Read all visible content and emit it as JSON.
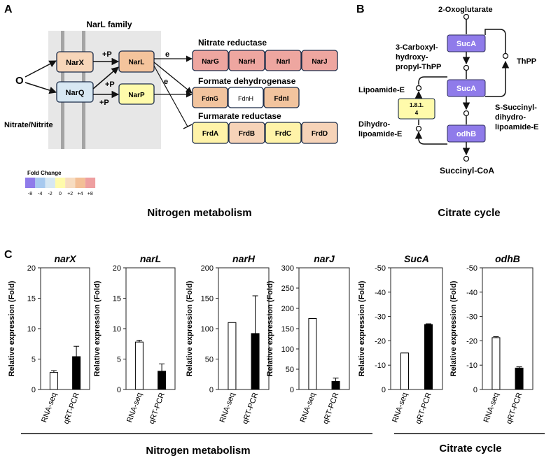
{
  "panels": {
    "A": "A",
    "B": "B",
    "C": "C"
  },
  "panel_a": {
    "family_label": "NarL family",
    "signal": "O",
    "input_label": "Nitrate/Nitrite",
    "phospho": "+P",
    "electron": "e",
    "nodes": {
      "narx": "NarX",
      "narq": "NarQ",
      "narl": "NarL",
      "narp": "NarP",
      "narg": "NarG",
      "narh": "NarH",
      "nari": "NarI",
      "narj": "NarJ",
      "fdng": "FdnG",
      "fdnh": "FdnH",
      "fdni": "FdnI",
      "frda": "FrdA",
      "frdb": "FrdB",
      "frdc": "FrdC",
      "frdd": "FrdD"
    },
    "node_colors": {
      "narx": "#f7d6b9",
      "narq": "#d8e8f3",
      "narl": "#f4c49c",
      "narp": "#fffbab",
      "narg": "#eea6a0",
      "narh": "#eea6a0",
      "nari": "#eea6a0",
      "narj": "#eea6a0",
      "fdng": "#f2c49e",
      "fdnh": "#ffffff",
      "fdni": "#f2c49e",
      "frda": "#fff3a8",
      "frdb": "#f6d3b8",
      "frdc": "#fff3a8",
      "frdd": "#f6d3b8"
    },
    "group_titles": {
      "nitrate": "Nitrate reductase",
      "formate": "Formate dehydrogenase",
      "fumarate": "Furmarate reductase"
    },
    "legend": {
      "title": "Fold Change",
      "ticks": [
        "-8",
        "-4",
        "-2",
        "0",
        "+2",
        "+4",
        "+8"
      ],
      "colors": [
        "#8f7bea",
        "#a7c9ef",
        "#d6e7f3",
        "#fffbab",
        "#f7dcc0",
        "#f3bf96",
        "#ee9fa0"
      ]
    },
    "caption": "Nitrogen metabolism"
  },
  "panel_b": {
    "top": "2-Oxoglutarate",
    "bottom": "Succinyl-CoA",
    "enzymes": {
      "suca1": "SucA",
      "suca2": "SucA",
      "odhb": "odhB",
      "ec": "1.8.1.\n4"
    },
    "ec_lines": [
      "1.8.1.",
      "4"
    ],
    "enzyme_color": "#8f7bea",
    "ec_color": "#fffbab",
    "labels": {
      "carboxy": [
        "3-Carboxyl-",
        "hydroxy-",
        "propyl-ThPP"
      ],
      "thpp": "ThPP",
      "lipoamide": "Lipoamide-E",
      "succinyl": [
        "S-Succinyl-",
        "dihydro-",
        "lipoamide-E"
      ],
      "dihydro": [
        "Dihydro-",
        "lipoamide-E"
      ]
    },
    "caption": "Citrate cycle"
  },
  "panel_c": {
    "ylabel": "Relative expression (Fold)",
    "group_captions": {
      "nitrogen": "Nitrogen metabolism",
      "citrate": "Citrate cycle"
    }
  },
  "chart_data": [
    {
      "type": "bar",
      "title": "narX",
      "categories": [
        "RNA-seq",
        "qRT-PCR"
      ],
      "values": [
        2.8,
        5.4
      ],
      "errors": [
        0.3,
        1.7
      ],
      "ylabel": "Relative expression (Fold)",
      "ylim": [
        0,
        20
      ],
      "yticks": [
        0,
        5,
        10,
        15,
        20
      ]
    },
    {
      "type": "bar",
      "title": "narL",
      "categories": [
        "RNA-seq",
        "qRT-PCR"
      ],
      "values": [
        7.8,
        3.0
      ],
      "errors": [
        0.3,
        1.2
      ],
      "ylabel": "Relative expression (Fold)",
      "ylim": [
        0,
        20
      ],
      "yticks": [
        0,
        5,
        10,
        15,
        20
      ]
    },
    {
      "type": "bar",
      "title": "narH",
      "categories": [
        "RNA-seq",
        "qRT-PCR"
      ],
      "values": [
        110,
        92
      ],
      "errors": [
        0,
        62
      ],
      "ylabel": "Relative expression (Fold)",
      "ylim": [
        0,
        200
      ],
      "yticks": [
        0,
        50,
        100,
        150,
        200
      ]
    },
    {
      "type": "bar",
      "title": "narJ",
      "categories": [
        "RNA-seq",
        "qRT-PCR"
      ],
      "values": [
        175,
        20
      ],
      "errors": [
        0,
        8
      ],
      "ylabel": "Relative expression (Fold)",
      "ylim": [
        0,
        300
      ],
      "yticks": [
        0,
        50,
        100,
        150,
        200,
        250,
        300
      ]
    },
    {
      "type": "bar",
      "title": "SucA",
      "categories": [
        "RNA-seq",
        "qRT-PCR"
      ],
      "values": [
        -15,
        -26.7
      ],
      "errors": [
        0,
        0.3
      ],
      "ylabel": "Relative expression (Fold)",
      "ylim": [
        0,
        -50
      ],
      "yticks": [
        0,
        -10,
        -20,
        -30,
        -40,
        -50
      ]
    },
    {
      "type": "bar",
      "title": "odhB",
      "categories": [
        "RNA-seq",
        "qRT-PCR"
      ],
      "values": [
        -21.3,
        -8.8
      ],
      "errors": [
        0.4,
        0.5
      ],
      "ylabel": "Relative expression (Fold)",
      "ylim": [
        0,
        -50
      ],
      "yticks": [
        0,
        -10,
        -20,
        -30,
        -40,
        -50
      ]
    }
  ]
}
